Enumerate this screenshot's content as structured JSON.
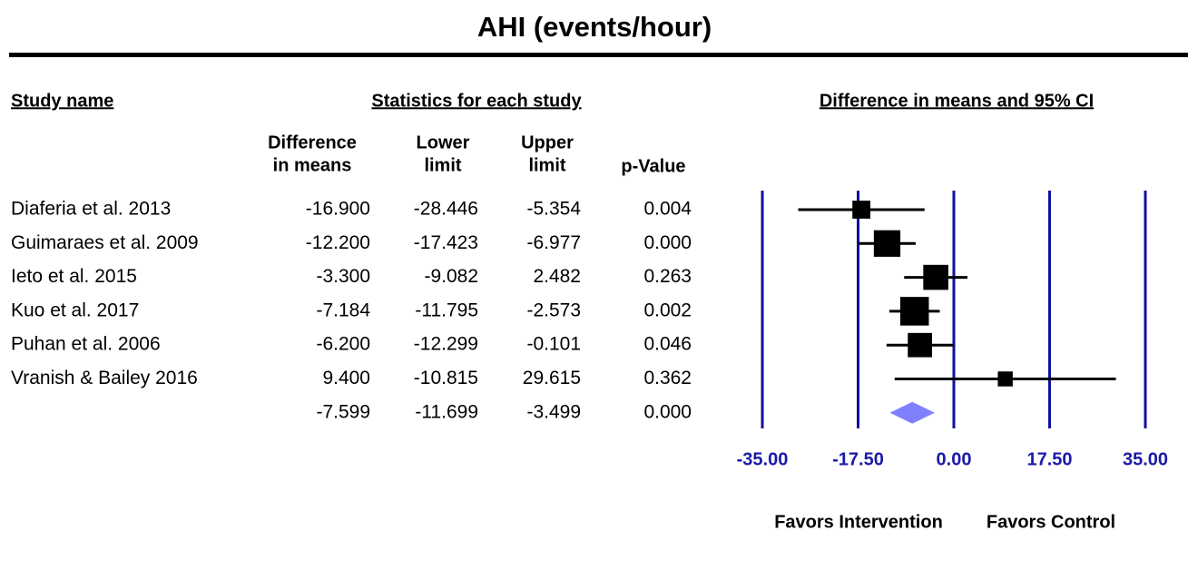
{
  "chart_data": {
    "type": "forest",
    "title": "AHI (events/hour)",
    "column_headers": {
      "study": "Study name",
      "statistics": "Statistics for each study",
      "plot": "Difference in means and 95% CI",
      "difference": [
        "Difference",
        "in means"
      ],
      "lower": [
        "Lower",
        "limit"
      ],
      "upper": [
        "Upper",
        "limit"
      ],
      "p": "p-Value"
    },
    "categories": [
      "Diaferia et al. 2013",
      "Guimaraes et al. 2009",
      "Ieto et al. 2015",
      "Kuo et al. 2017",
      "Puhan et al. 2006",
      "Vranish & Bailey 2016"
    ],
    "values": [
      -16.9,
      -12.2,
      -3.3,
      -7.184,
      -6.2,
      9.4
    ],
    "value_labels": [
      "-16.900",
      "-12.200",
      "-3.300",
      "-7.184",
      "-6.200",
      "9.400"
    ],
    "lower": [
      -28.446,
      -17.423,
      -9.082,
      -11.795,
      -12.299,
      -10.815
    ],
    "upper": [
      -5.354,
      -6.977,
      2.482,
      -2.573,
      -0.101,
      29.615
    ],
    "p_values": [
      0.004,
      {
        "value": 0,
        "label": "0.000"
      },
      0.263,
      0.002,
      0.046,
      0.362
    ],
    "summary": {
      "value": -7.599,
      "lower": -11.699,
      "upper": -3.499,
      "p": {
        "value": 0,
        "label": "0.000"
      }
    },
    "xlim": [
      -35,
      35
    ],
    "xticks": [
      {
        "value": -35,
        "label": "-35.00"
      },
      {
        "value": -17.5,
        "label": "-17.50"
      },
      {
        "value": 0,
        "label": "0.00"
      },
      {
        "value": 17.5,
        "label": "17.50"
      },
      {
        "value": 35,
        "label": "35.00"
      }
    ],
    "grid": true,
    "favors_left": "Favors Intervention",
    "favors_right": "Favors Control",
    "marker_color": "#000000",
    "summary_color": "#8080ff",
    "grid_color": "#1010a0",
    "tick_label_color": "#1a1aa8"
  }
}
